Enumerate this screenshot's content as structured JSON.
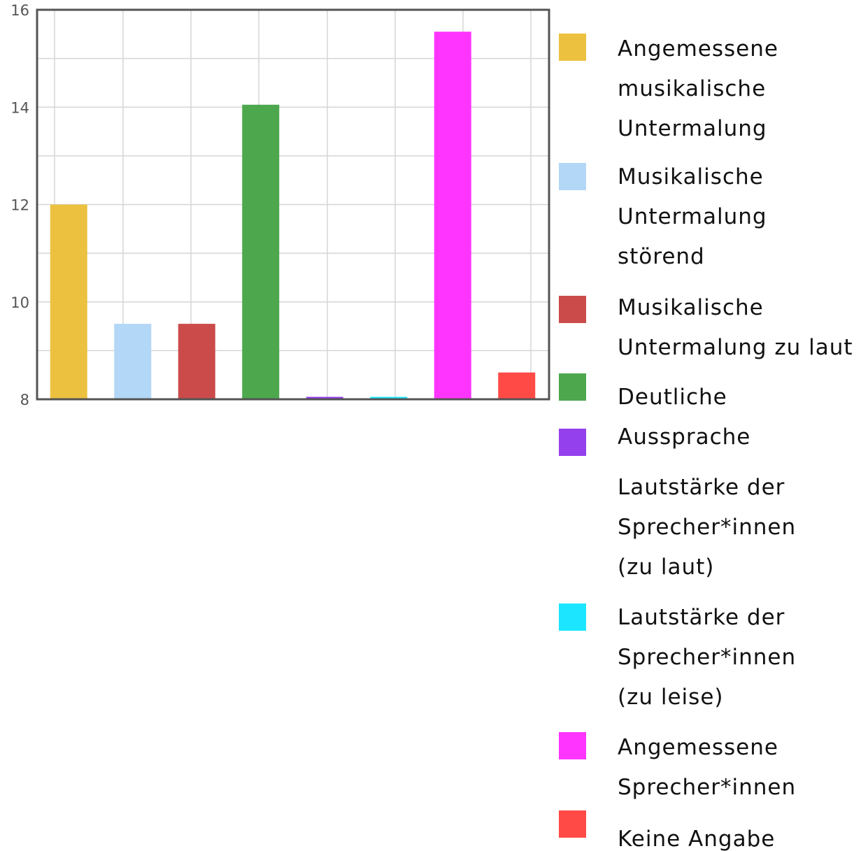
{
  "chart_data": {
    "type": "bar",
    "title": "",
    "xlabel": "",
    "ylabel": "",
    "ylim": [
      8,
      16
    ],
    "yticks": [
      8,
      10,
      12,
      14,
      16
    ],
    "grid": true,
    "legend_position": "right",
    "series": [
      {
        "name": "Angemessene musikalische Untermalung",
        "value": 12,
        "color": "#ECC13F"
      },
      {
        "name": "Musikalische Untermalung störend",
        "value": 9.55,
        "color": "#B3D7F6"
      },
      {
        "name": "Musikalische Untermalung zu laut",
        "value": 9.55,
        "color": "#CB4B4B"
      },
      {
        "name": "Deutliche Aussprache",
        "value": 14.05,
        "color": "#4DA74D"
      },
      {
        "name": "Lautstärke der Sprecher*innen (zu laut)",
        "value": 8.05,
        "color": "#9440ED"
      },
      {
        "name": "Lautstärke der Sprecher*innen (zu leise)",
        "value": 8.05,
        "color": "#1CE6FF"
      },
      {
        "name": "Angemessene Sprecher*innen",
        "value": 15.55,
        "color": "#FF34FF"
      },
      {
        "name": "Keine Angabe",
        "value": 8.55,
        "color": "#FF4A46"
      }
    ]
  }
}
